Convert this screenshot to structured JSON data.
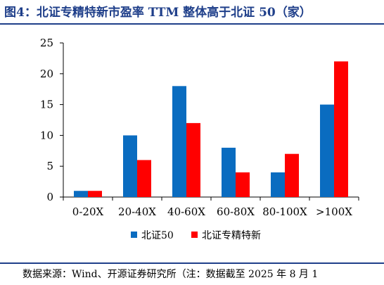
{
  "title": "图4：北证专精特新市盈率 TTM 整体高于北证 50（家）",
  "source": "数据来源：Wind、开源证券研究所（注：数据截至 2025 年 8 月 1",
  "colors": {
    "title": "#1f3f8a",
    "series_a": "#0a6cc0",
    "series_b": "#ff0000"
  },
  "chart_data": {
    "type": "bar",
    "categories": [
      "0-20X",
      "20-40X",
      "40-60X",
      "60-80X",
      "80-100X",
      ">100X"
    ],
    "series": [
      {
        "name": "北证50",
        "values": [
          1,
          10,
          18,
          8,
          4,
          15
        ]
      },
      {
        "name": "北证专精特新",
        "values": [
          1,
          6,
          12,
          4,
          7,
          22
        ]
      }
    ],
    "ylim": [
      0,
      25
    ],
    "yticks": [
      "0",
      "5",
      "10",
      "15",
      "20",
      "25"
    ],
    "grid": false,
    "legend": "bottom"
  }
}
